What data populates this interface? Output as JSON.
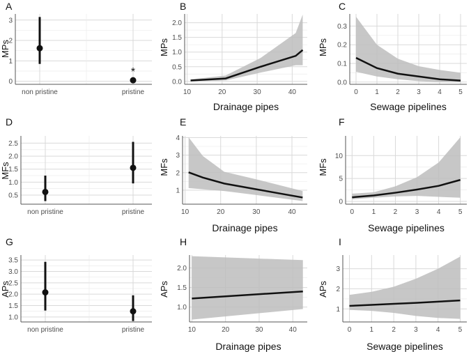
{
  "chart_data": [
    {
      "letter": "A",
      "type": "scatter",
      "variant": "categorical-errorbar",
      "categories": [
        "non pristine",
        "pristine"
      ],
      "values": [
        1.62,
        0.05
      ],
      "lower": [
        0.85,
        null
      ],
      "upper": [
        3.15,
        null
      ],
      "ylabel": "MPs",
      "xlabel": "",
      "yticks": [
        0,
        1,
        2,
        3
      ],
      "ylim": [
        -0.15,
        3.3
      ],
      "annotations": [
        {
          "category": "pristine",
          "text": "*",
          "y": 0.5
        }
      ]
    },
    {
      "letter": "B",
      "type": "line",
      "variant": "ribbon",
      "x": [
        11,
        21,
        31,
        41,
        43
      ],
      "values": [
        0.03,
        0.1,
        0.5,
        0.87,
        1.07
      ],
      "lower": [
        0.0,
        0.03,
        0.3,
        0.55,
        0.55
      ],
      "upper": [
        0.07,
        0.2,
        0.8,
        1.65,
        2.28
      ],
      "ylabel": "MPs",
      "xlabel": "Drainage pipes",
      "xticks": [
        10,
        20,
        30,
        40
      ],
      "xlim": [
        9.3,
        44.3
      ],
      "yticks": [
        0.0,
        0.5,
        1.0,
        1.5,
        2.0
      ],
      "ylim": [
        -0.1,
        2.3
      ]
    },
    {
      "letter": "C",
      "type": "line",
      "variant": "ribbon",
      "x": [
        0,
        1,
        2,
        3,
        4,
        5
      ],
      "values": [
        0.13,
        0.075,
        0.045,
        0.03,
        0.015,
        0.008
      ],
      "lower": [
        0.055,
        0.03,
        0.015,
        0.005,
        0.0,
        0.0
      ],
      "upper": [
        0.35,
        0.2,
        0.125,
        0.085,
        0.065,
        0.05
      ],
      "ylabel": "MPs",
      "xlabel": "Sewage pipelines",
      "xticks": [
        0,
        1,
        2,
        3,
        4,
        5
      ],
      "xlim": [
        -0.3,
        5.3
      ],
      "yticks": [
        0.0,
        0.1,
        0.2,
        0.3
      ],
      "ylim": [
        -0.012,
        0.365
      ]
    },
    {
      "letter": "D",
      "type": "scatter",
      "variant": "categorical-errorbar",
      "categories": [
        "non pristine",
        "pristine"
      ],
      "values": [
        0.62,
        1.55
      ],
      "lower": [
        0.27,
        0.95
      ],
      "upper": [
        1.25,
        2.55
      ],
      "ylabel": "MFs",
      "xlabel": "",
      "yticks": [
        0.5,
        1.0,
        1.5,
        2.0,
        2.5
      ],
      "ylim": [
        0.15,
        2.78
      ]
    },
    {
      "letter": "E",
      "type": "line",
      "variant": "ribbon",
      "x": [
        11,
        15,
        21,
        30,
        43
      ],
      "values": [
        2.02,
        1.72,
        1.38,
        1.05,
        0.58
      ],
      "lower": [
        1.12,
        1.05,
        0.95,
        0.72,
        0.38
      ],
      "upper": [
        4.02,
        2.95,
        2.05,
        1.62,
        0.95
      ],
      "ylabel": "MFs",
      "xlabel": "Drainage pipes",
      "xticks": [
        10,
        20,
        30,
        40
      ],
      "xlim": [
        9.3,
        44.3
      ],
      "yticks": [
        1,
        2,
        3,
        4
      ],
      "ylim": [
        0.2,
        4.1
      ]
    },
    {
      "letter": "F",
      "type": "line",
      "variant": "ribbon",
      "x": [
        0,
        1,
        2,
        3,
        4,
        5
      ],
      "values": [
        0.9,
        1.3,
        1.9,
        2.6,
        3.4,
        4.7
      ],
      "lower": [
        0.45,
        0.8,
        1.1,
        1.2,
        1.0,
        0.8
      ],
      "upper": [
        1.7,
        2.0,
        3.3,
        5.3,
        8.5,
        14.0
      ],
      "ylabel": "MFs",
      "xlabel": "Sewage pipelines",
      "xticks": [
        0,
        1,
        2,
        3,
        4,
        5
      ],
      "xlim": [
        -0.3,
        5.3
      ],
      "yticks": [
        0,
        5,
        10
      ],
      "ylim": [
        -0.6,
        14.3
      ]
    },
    {
      "letter": "G",
      "type": "scatter",
      "variant": "categorical-errorbar",
      "categories": [
        "non pristine",
        "pristine"
      ],
      "values": [
        2.08,
        1.25
      ],
      "lower": [
        1.28,
        0.82
      ],
      "upper": [
        3.42,
        1.95
      ],
      "ylabel": "APs",
      "xlabel": "",
      "yticks": [
        1.0,
        1.5,
        2.0,
        2.5,
        3.0,
        3.5
      ],
      "ylim": [
        0.78,
        3.72
      ]
    },
    {
      "letter": "H",
      "type": "line",
      "variant": "ribbon",
      "x": [
        10,
        43
      ],
      "values": [
        1.22,
        1.4
      ],
      "lower": [
        0.68,
        0.95
      ],
      "upper": [
        2.3,
        2.2
      ],
      "ylabel": "APs",
      "xlabel": "Drainage pipes",
      "xticks": [
        10,
        20,
        30,
        40
      ],
      "xlim": [
        9.3,
        44.3
      ],
      "yticks": [
        1.0,
        1.5,
        2.0
      ],
      "ylim": [
        0.62,
        2.33
      ]
    },
    {
      "letter": "I",
      "type": "line",
      "variant": "ribbon",
      "x": [
        0,
        1,
        2,
        3,
        4,
        5
      ],
      "values": [
        1.15,
        1.2,
        1.25,
        1.3,
        1.36,
        1.42
      ],
      "lower": [
        0.95,
        0.9,
        0.8,
        0.65,
        0.55,
        0.5
      ],
      "upper": [
        1.7,
        1.85,
        2.1,
        2.5,
        3.0,
        3.6
      ],
      "ylabel": "APs",
      "xlabel": "Sewage pipelines",
      "xticks": [
        0,
        1,
        2,
        3,
        4,
        5
      ],
      "xlim": [
        -0.3,
        5.3
      ],
      "yticks": [
        1,
        2,
        3
      ],
      "ylim": [
        0.35,
        3.68
      ]
    }
  ],
  "colors": {
    "line": "#111111",
    "ribbon": "#bdbdbd",
    "grid": "#d9d9d9",
    "axis": "#555555"
  }
}
